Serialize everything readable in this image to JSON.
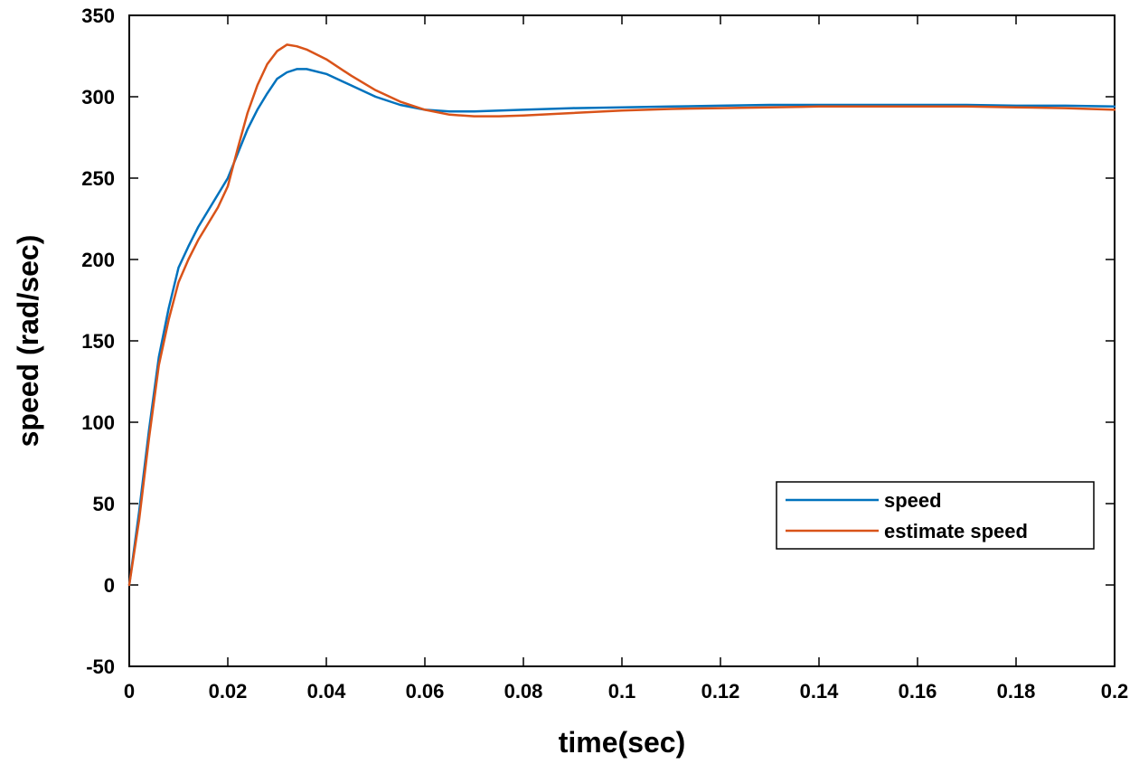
{
  "chart_data": {
    "type": "line",
    "title": "",
    "xlabel": "time(sec)",
    "ylabel": "speed (rad/sec)",
    "xlim": [
      0,
      0.2
    ],
    "ylim": [
      -50,
      350
    ],
    "xticks": [
      0,
      0.02,
      0.04,
      0.06,
      0.08,
      0.1,
      0.12,
      0.14,
      0.16,
      0.18,
      0.2
    ],
    "xtick_labels": [
      "0",
      "0.02",
      "0.04",
      "0.06",
      "0.08",
      "0.1",
      "0.12",
      "0.14",
      "0.16",
      "0.18",
      "0.2"
    ],
    "yticks": [
      -50,
      0,
      50,
      100,
      150,
      200,
      250,
      300,
      350
    ],
    "ytick_labels": [
      "-50",
      "0",
      "50",
      "100",
      "150",
      "200",
      "250",
      "300",
      "350"
    ],
    "grid": false,
    "legend_position": "lower-right",
    "series": [
      {
        "name": "speed",
        "color": "#0072BD",
        "x": [
          0,
          0.002,
          0.004,
          0.006,
          0.008,
          0.01,
          0.012,
          0.014,
          0.016,
          0.018,
          0.02,
          0.022,
          0.024,
          0.026,
          0.028,
          0.03,
          0.032,
          0.034,
          0.036,
          0.04,
          0.045,
          0.05,
          0.055,
          0.06,
          0.065,
          0.07,
          0.08,
          0.09,
          0.1,
          0.11,
          0.12,
          0.13,
          0.14,
          0.15,
          0.16,
          0.17,
          0.18,
          0.19,
          0.2
        ],
        "values": [
          0,
          45,
          95,
          140,
          170,
          195,
          208,
          220,
          230,
          240,
          250,
          265,
          280,
          292,
          302,
          311,
          315,
          317,
          317,
          314,
          307,
          300,
          295,
          292,
          291,
          291,
          292,
          293,
          293.5,
          294,
          294.5,
          295,
          295,
          295,
          295,
          295,
          294.5,
          294.5,
          294
        ]
      },
      {
        "name": "estimate speed",
        "color": "#D95319",
        "x": [
          0,
          0.002,
          0.004,
          0.006,
          0.008,
          0.01,
          0.012,
          0.014,
          0.016,
          0.018,
          0.02,
          0.022,
          0.024,
          0.026,
          0.028,
          0.03,
          0.032,
          0.034,
          0.036,
          0.04,
          0.045,
          0.05,
          0.055,
          0.06,
          0.065,
          0.07,
          0.075,
          0.08,
          0.09,
          0.1,
          0.11,
          0.12,
          0.13,
          0.14,
          0.15,
          0.16,
          0.17,
          0.18,
          0.19,
          0.2
        ],
        "values": [
          0,
          40,
          90,
          135,
          163,
          186,
          200,
          212,
          222,
          232,
          245,
          268,
          290,
          307,
          320,
          328,
          332,
          331,
          329,
          323,
          313,
          304,
          297,
          292,
          289,
          288,
          288,
          288.5,
          290,
          291.5,
          292.5,
          293,
          293.5,
          294,
          294,
          294,
          294,
          293.5,
          293,
          292
        ]
      }
    ]
  }
}
